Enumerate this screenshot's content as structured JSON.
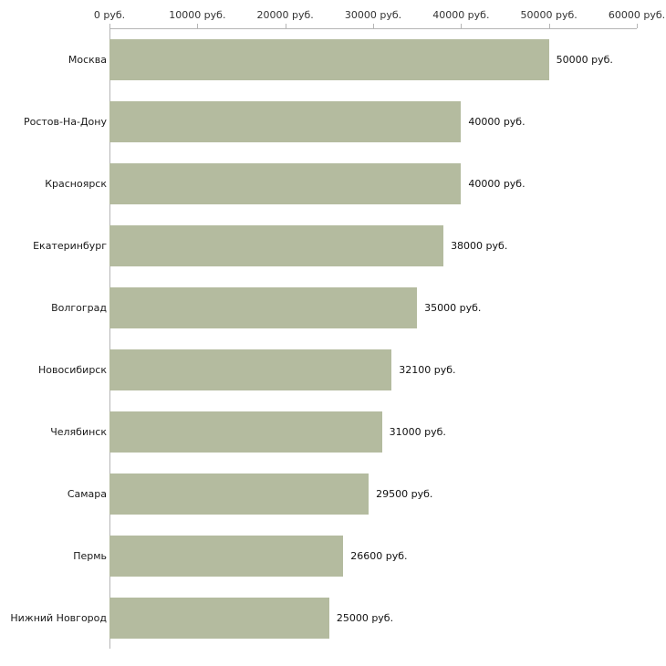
{
  "chart_data": {
    "type": "bar",
    "orientation": "horizontal",
    "categories": [
      "Москва",
      "Ростов-На-Дону",
      "Красноярск",
      "Екатеринбург",
      "Волгоград",
      "Новосибирск",
      "Челябинск",
      "Самара",
      "Пермь",
      "Нижний Новгород"
    ],
    "values": [
      50000,
      40000,
      40000,
      38000,
      35000,
      32100,
      31000,
      29500,
      26600,
      25000
    ],
    "value_labels": [
      "50000 руб.",
      "40000 руб.",
      "40000 руб.",
      "38000 руб.",
      "35000 руб.",
      "32100 руб.",
      "31000 руб.",
      "29500 руб.",
      "26600 руб.",
      "25000 руб."
    ],
    "x_axis": {
      "position": "top",
      "min": 0,
      "max": 60000,
      "ticks": [
        0,
        10000,
        20000,
        30000,
        40000,
        50000,
        60000
      ],
      "tick_labels": [
        "0 руб.",
        "10000 руб.",
        "20000 руб.",
        "30000 руб.",
        "40000 руб.",
        "50000 руб.",
        "60000 руб."
      ]
    },
    "bar_color": "#b4bb9f",
    "background_color": "#ffffff",
    "grid": false
  }
}
